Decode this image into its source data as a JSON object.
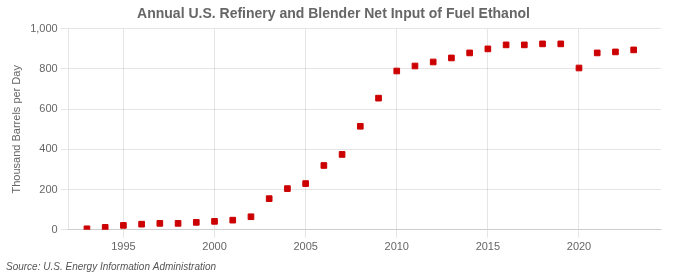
{
  "chart_data": {
    "type": "scatter",
    "title": "Annual U.S. Refinery and Blender Net Input of Fuel Ethanol",
    "ylabel": "Thousand Barrels per Day",
    "annotations": [
      "Source: U.S. Energy Information Administration"
    ],
    "x": [
      1993,
      1994,
      1995,
      1996,
      1997,
      1998,
      1999,
      2000,
      2001,
      2002,
      2003,
      2004,
      2005,
      2006,
      2007,
      2008,
      2009,
      2010,
      2011,
      2012,
      2013,
      2014,
      2015,
      2016,
      2017,
      2018,
      2019,
      2020,
      2021,
      2022,
      2023
    ],
    "values": [
      5,
      12,
      22,
      28,
      32,
      32,
      37,
      42,
      48,
      65,
      155,
      205,
      230,
      320,
      375,
      515,
      655,
      790,
      815,
      835,
      855,
      880,
      900,
      920,
      920,
      925,
      925,
      805,
      880,
      885,
      895
    ],
    "color": "#cc0000",
    "marker": "square",
    "xlim": [
      1992.0,
      2024.5
    ],
    "xticks": [
      1995,
      2000,
      2005,
      2010,
      2015,
      2020
    ],
    "ylim": [
      0,
      1000
    ],
    "yticks": [
      0,
      200,
      400,
      600,
      800,
      {
        "value": 1000,
        "label": "1,000"
      }
    ],
    "grid": true
  }
}
